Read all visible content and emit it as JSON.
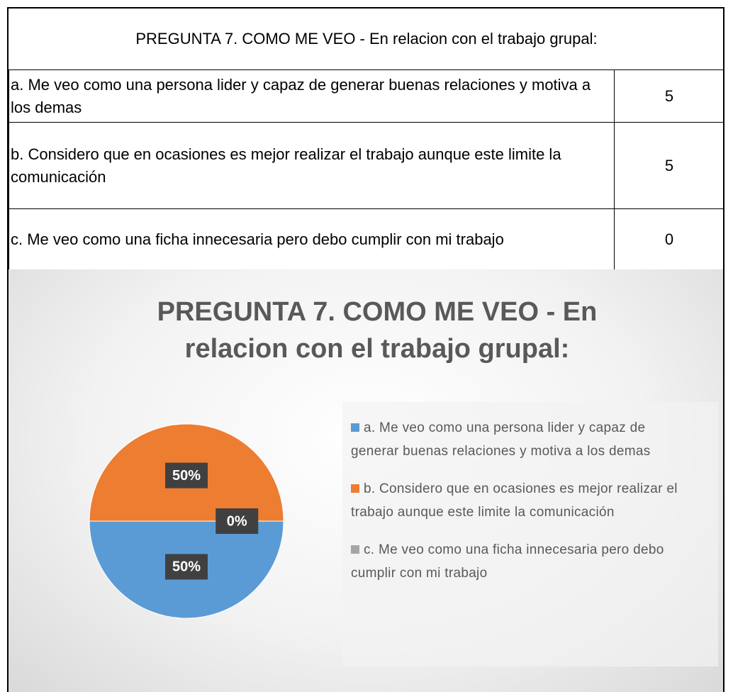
{
  "table": {
    "title": "PREGUNTA 7. COMO ME VEO - En relacion con el trabajo grupal:",
    "rows": [
      [
        "a. Me veo como una persona lider y capaz de generar buenas relaciones y motiva a los demas",
        "5"
      ],
      [
        "b. Considero que en ocasiones es mejor realizar el trabajo aunque este limite la comunicación",
        "5"
      ],
      [
        "c. Me veo como una ficha innecesaria pero debo cumplir con mi trabajo",
        "0"
      ]
    ]
  },
  "chart_data": {
    "type": "pie",
    "title": "PREGUNTA 7. COMO ME VEO - En relacion con el trabajo grupal:",
    "categories": [
      "a. Me veo como una persona lider y capaz de generar buenas relaciones y motiva a los demas",
      "b. Considero que en ocasiones es mejor realizar el trabajo aunque este limite la comunicación",
      "c. Me veo como una ficha innecesaria pero debo cumplir con mi trabajo"
    ],
    "values": [
      50,
      50,
      0
    ],
    "value_labels": [
      "50%",
      "50%",
      "0%"
    ],
    "colors": [
      "#5b9bd5",
      "#ed7d31",
      "#a5a5a5"
    ]
  }
}
